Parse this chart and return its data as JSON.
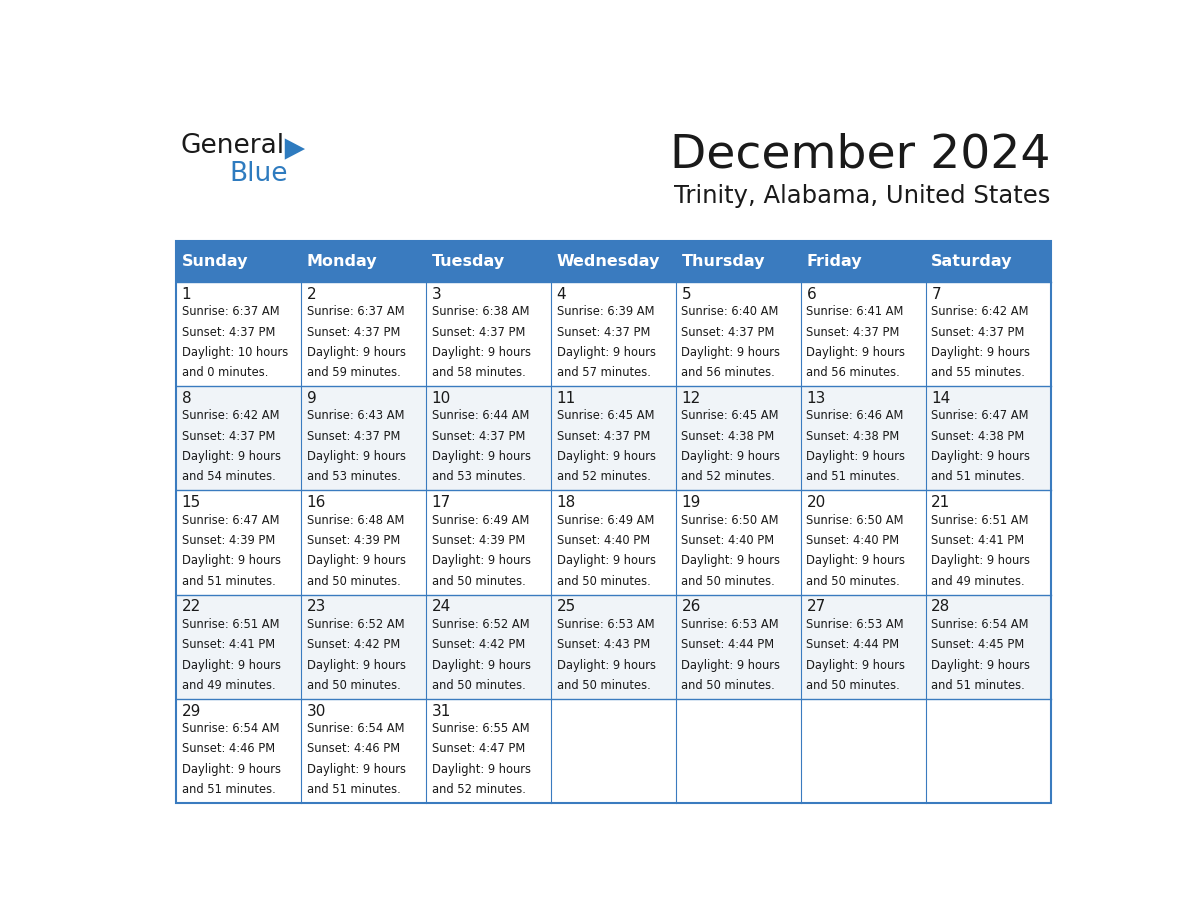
{
  "title": "December 2024",
  "subtitle": "Trinity, Alabama, United States",
  "header_color": "#3a7bbf",
  "header_text_color": "#ffffff",
  "cell_bg_white": "#ffffff",
  "cell_bg_gray": "#f0f4f8",
  "border_color": "#3a7bbf",
  "days_of_week": [
    "Sunday",
    "Monday",
    "Tuesday",
    "Wednesday",
    "Thursday",
    "Friday",
    "Saturday"
  ],
  "logo_general_color": "#1a1a1a",
  "logo_blue_color": "#2e7bbf",
  "calendar_data": [
    [
      {
        "day": 1,
        "sunrise": "6:37 AM",
        "sunset": "4:37 PM",
        "hours": "10 hours",
        "mins": "0 minutes."
      },
      {
        "day": 2,
        "sunrise": "6:37 AM",
        "sunset": "4:37 PM",
        "hours": "9 hours",
        "mins": "59 minutes."
      },
      {
        "day": 3,
        "sunrise": "6:38 AM",
        "sunset": "4:37 PM",
        "hours": "9 hours",
        "mins": "58 minutes."
      },
      {
        "day": 4,
        "sunrise": "6:39 AM",
        "sunset": "4:37 PM",
        "hours": "9 hours",
        "mins": "57 minutes."
      },
      {
        "day": 5,
        "sunrise": "6:40 AM",
        "sunset": "4:37 PM",
        "hours": "9 hours",
        "mins": "56 minutes."
      },
      {
        "day": 6,
        "sunrise": "6:41 AM",
        "sunset": "4:37 PM",
        "hours": "9 hours",
        "mins": "56 minutes."
      },
      {
        "day": 7,
        "sunrise": "6:42 AM",
        "sunset": "4:37 PM",
        "hours": "9 hours",
        "mins": "55 minutes."
      }
    ],
    [
      {
        "day": 8,
        "sunrise": "6:42 AM",
        "sunset": "4:37 PM",
        "hours": "9 hours",
        "mins": "54 minutes."
      },
      {
        "day": 9,
        "sunrise": "6:43 AM",
        "sunset": "4:37 PM",
        "hours": "9 hours",
        "mins": "53 minutes."
      },
      {
        "day": 10,
        "sunrise": "6:44 AM",
        "sunset": "4:37 PM",
        "hours": "9 hours",
        "mins": "53 minutes."
      },
      {
        "day": 11,
        "sunrise": "6:45 AM",
        "sunset": "4:37 PM",
        "hours": "9 hours",
        "mins": "52 minutes."
      },
      {
        "day": 12,
        "sunrise": "6:45 AM",
        "sunset": "4:38 PM",
        "hours": "9 hours",
        "mins": "52 minutes."
      },
      {
        "day": 13,
        "sunrise": "6:46 AM",
        "sunset": "4:38 PM",
        "hours": "9 hours",
        "mins": "51 minutes."
      },
      {
        "day": 14,
        "sunrise": "6:47 AM",
        "sunset": "4:38 PM",
        "hours": "9 hours",
        "mins": "51 minutes."
      }
    ],
    [
      {
        "day": 15,
        "sunrise": "6:47 AM",
        "sunset": "4:39 PM",
        "hours": "9 hours",
        "mins": "51 minutes."
      },
      {
        "day": 16,
        "sunrise": "6:48 AM",
        "sunset": "4:39 PM",
        "hours": "9 hours",
        "mins": "50 minutes."
      },
      {
        "day": 17,
        "sunrise": "6:49 AM",
        "sunset": "4:39 PM",
        "hours": "9 hours",
        "mins": "50 minutes."
      },
      {
        "day": 18,
        "sunrise": "6:49 AM",
        "sunset": "4:40 PM",
        "hours": "9 hours",
        "mins": "50 minutes."
      },
      {
        "day": 19,
        "sunrise": "6:50 AM",
        "sunset": "4:40 PM",
        "hours": "9 hours",
        "mins": "50 minutes."
      },
      {
        "day": 20,
        "sunrise": "6:50 AM",
        "sunset": "4:40 PM",
        "hours": "9 hours",
        "mins": "50 minutes."
      },
      {
        "day": 21,
        "sunrise": "6:51 AM",
        "sunset": "4:41 PM",
        "hours": "9 hours",
        "mins": "49 minutes."
      }
    ],
    [
      {
        "day": 22,
        "sunrise": "6:51 AM",
        "sunset": "4:41 PM",
        "hours": "9 hours",
        "mins": "49 minutes."
      },
      {
        "day": 23,
        "sunrise": "6:52 AM",
        "sunset": "4:42 PM",
        "hours": "9 hours",
        "mins": "50 minutes."
      },
      {
        "day": 24,
        "sunrise": "6:52 AM",
        "sunset": "4:42 PM",
        "hours": "9 hours",
        "mins": "50 minutes."
      },
      {
        "day": 25,
        "sunrise": "6:53 AM",
        "sunset": "4:43 PM",
        "hours": "9 hours",
        "mins": "50 minutes."
      },
      {
        "day": 26,
        "sunrise": "6:53 AM",
        "sunset": "4:44 PM",
        "hours": "9 hours",
        "mins": "50 minutes."
      },
      {
        "day": 27,
        "sunrise": "6:53 AM",
        "sunset": "4:44 PM",
        "hours": "9 hours",
        "mins": "50 minutes."
      },
      {
        "day": 28,
        "sunrise": "6:54 AM",
        "sunset": "4:45 PM",
        "hours": "9 hours",
        "mins": "51 minutes."
      }
    ],
    [
      {
        "day": 29,
        "sunrise": "6:54 AM",
        "sunset": "4:46 PM",
        "hours": "9 hours",
        "mins": "51 minutes."
      },
      {
        "day": 30,
        "sunrise": "6:54 AM",
        "sunset": "4:46 PM",
        "hours": "9 hours",
        "mins": "51 minutes."
      },
      {
        "day": 31,
        "sunrise": "6:55 AM",
        "sunset": "4:47 PM",
        "hours": "9 hours",
        "mins": "52 minutes."
      },
      null,
      null,
      null,
      null
    ]
  ]
}
